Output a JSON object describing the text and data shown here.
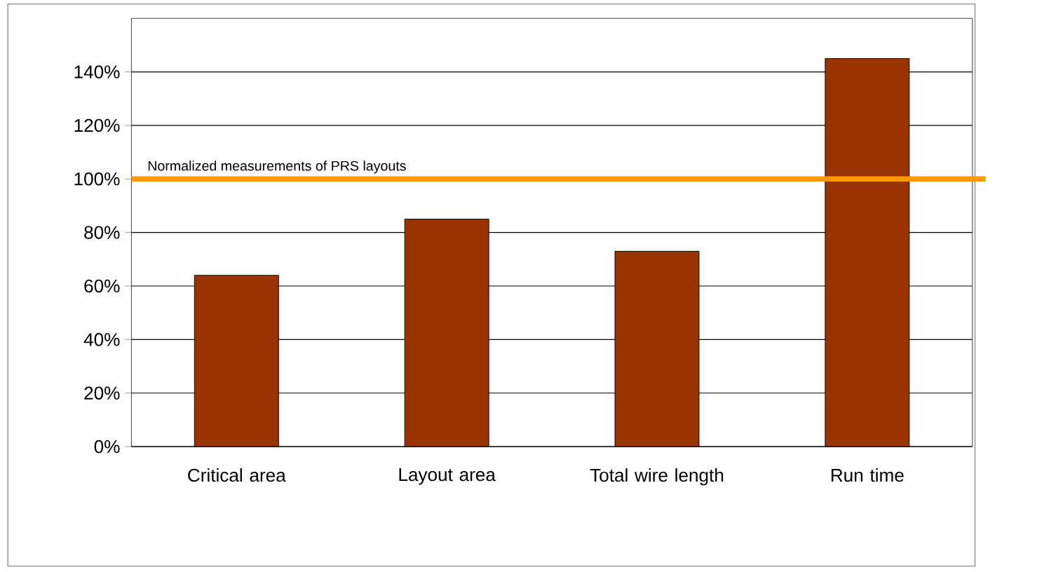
{
  "chart_data": {
    "type": "bar",
    "categories": [
      "Critical area",
      "Layout area",
      "Total wire length",
      "Run time"
    ],
    "values": [
      64,
      85,
      73,
      145
    ],
    "color": "#993300",
    "ylim": [
      0,
      160
    ],
    "yticks": [
      {
        "value": 0,
        "label": "0%"
      },
      {
        "value": 20,
        "label": "20%"
      },
      {
        "value": 40,
        "label": "40%"
      },
      {
        "value": 60,
        "label": "60%"
      },
      {
        "value": 80,
        "label": "80%"
      },
      {
        "value": 100,
        "label": "100%"
      },
      {
        "value": 120,
        "label": "120%"
      },
      {
        "value": 140,
        "label": "140%"
      }
    ],
    "grid": "y",
    "ref_lines": [
      {
        "axis": "y",
        "value": 100,
        "label": "Normalized measurements of PRS layouts",
        "color": "#ff9900"
      }
    ]
  }
}
